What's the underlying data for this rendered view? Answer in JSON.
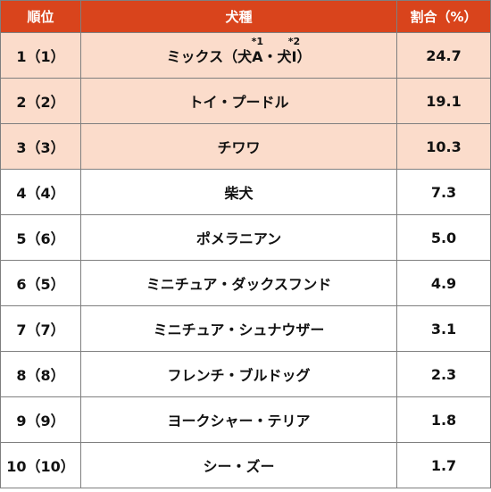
{
  "headers": {
    "rank": "順位",
    "breed": "犬種",
    "share": "割合（%）"
  },
  "row1": {
    "rank": "1（1）",
    "breed_part1": "ミックス（犬",
    "a_letter": "A",
    "a_note": "*1",
    "separator": "・犬",
    "i_letter": "I",
    "i_note": "*2",
    "breed_part2": "）",
    "share": "24.7"
  },
  "rows": [
    {
      "rank": "2（2）",
      "breed": "トイ・プードル",
      "share": "19.1"
    },
    {
      "rank": "3（3）",
      "breed": "チワワ",
      "share": "10.3"
    },
    {
      "rank": "4（4）",
      "breed": "柴犬",
      "share": "7.3"
    },
    {
      "rank": "5（6）",
      "breed": "ポメラニアン",
      "share": "5.0"
    },
    {
      "rank": "6（5）",
      "breed": "ミニチュア・ダックスフンド",
      "share": "4.9"
    },
    {
      "rank": "7（7）",
      "breed": "ミニチュア・シュナウザー",
      "share": "3.1"
    },
    {
      "rank": "8（8）",
      "breed": "フレンチ・ブルドッグ",
      "share": "2.3"
    },
    {
      "rank": "9（9）",
      "breed": "ヨークシャー・テリア",
      "share": "1.8"
    },
    {
      "rank": "10（10）",
      "breed": "シー・ズー",
      "share": "1.7"
    }
  ],
  "colors": {
    "header_bg": "#d9441c",
    "top3_bg": "#fbdccb",
    "border": "#7f7f7f"
  }
}
